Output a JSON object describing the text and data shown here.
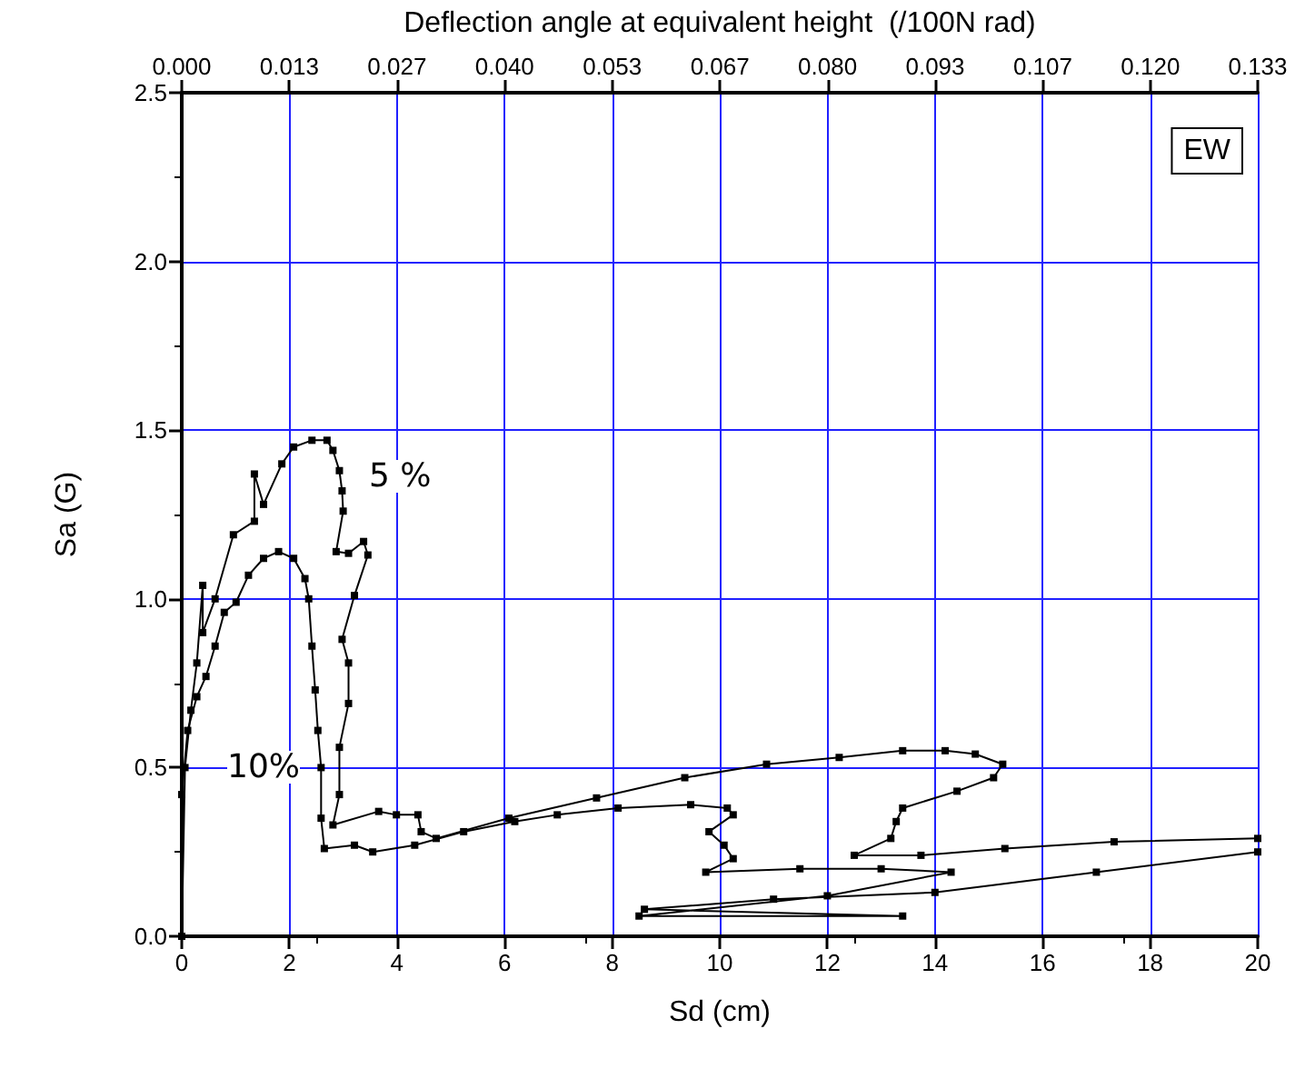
{
  "chart_data": {
    "type": "line",
    "xlabel": "Sd (cm)",
    "ylabel": "Sa (G)",
    "x2label": "Deflection angle at equivalent height  (/100N rad)",
    "xlim": [
      0,
      20
    ],
    "xticks": [
      0,
      2,
      4,
      6,
      8,
      10,
      12,
      14,
      16,
      18,
      20
    ],
    "ylim": [
      0,
      2.5
    ],
    "yticks": [
      {
        "value": 0,
        "label": "0.0"
      },
      0.5,
      {
        "value": 1,
        "label": "1.0"
      },
      1.5,
      {
        "value": 2,
        "label": "2.0"
      },
      2.5
    ],
    "x2lim": [
      0,
      0.1333
    ],
    "x2ticks": [
      {
        "value": 0,
        "label": "0.000"
      },
      {
        "value": 0.01333,
        "label": "0.013"
      },
      {
        "value": 0.02667,
        "label": "0.027"
      },
      {
        "value": 0.04,
        "label": "0.040"
      },
      {
        "value": 0.05333,
        "label": "0.053"
      },
      {
        "value": 0.06667,
        "label": "0.067"
      },
      {
        "value": 0.08,
        "label": "0.080"
      },
      {
        "value": 0.09333,
        "label": "0.093"
      },
      {
        "value": 0.10667,
        "label": "0.107"
      },
      {
        "value": 0.12,
        "label": "0.120"
      },
      {
        "value": 0.1333,
        "label": "0.133"
      }
    ],
    "grid": true,
    "marker": "square",
    "line_style": "solid",
    "legend": false,
    "series": [
      {
        "name": "5 %",
        "color": "#000000",
        "x": [
          0,
          0.06,
          0.17,
          0.28,
          0.39,
          0.39,
          0.62,
          0.96,
          1.35,
          1.35,
          1.52,
          1.86,
          2.08,
          2.42,
          2.7,
          2.81,
          2.93,
          2.98,
          3.0,
          2.87,
          3.1,
          3.38,
          3.46,
          3.21,
          2.98,
          3.1,
          3.1,
          2.93,
          2.93,
          2.81,
          3.66,
          3.99,
          4.39,
          4.45,
          4.73,
          6.08,
          7.71,
          9.35,
          10.87,
          12.22,
          13.4,
          14.19,
          14.75,
          15.26,
          15.09,
          14.41,
          13.4,
          13.28,
          13.18,
          12.5,
          13.74,
          15.3,
          17.33,
          20
        ],
        "values": [
          0,
          0.5,
          0.67,
          0.81,
          1.04,
          0.9,
          1.0,
          1.19,
          1.23,
          1.37,
          1.28,
          1.4,
          1.45,
          1.47,
          1.47,
          1.44,
          1.38,
          1.32,
          1.26,
          1.14,
          1.135,
          1.17,
          1.13,
          1.01,
          0.88,
          0.81,
          0.69,
          0.56,
          0.42,
          0.33,
          0.37,
          0.36,
          0.36,
          0.31,
          0.29,
          0.35,
          0.41,
          0.47,
          0.51,
          0.53,
          0.55,
          0.55,
          0.54,
          0.51,
          0.47,
          0.43,
          0.38,
          0.34,
          0.29,
          0.24,
          0.24,
          0.26,
          0.28,
          0.29
        ]
      },
      {
        "name": "10%",
        "color": "#000000",
        "x": [
          0,
          0,
          0.11,
          0.28,
          0.45,
          0.62,
          0.79,
          1.01,
          1.24,
          1.52,
          1.8,
          2.08,
          2.29,
          2.36,
          2.42,
          2.48,
          2.53,
          2.59,
          2.59,
          2.65,
          3.21,
          3.55,
          4.33,
          5.24,
          6.19,
          6.98,
          8.11,
          9.46,
          10.14,
          10.25,
          9.8,
          10.08,
          10.25,
          9.74,
          11.49,
          13.0,
          14.3,
          12.0,
          8.5,
          13.4,
          8.6,
          11.0,
          14.0,
          17.0,
          20
        ],
        "values": [
          0,
          0.42,
          0.61,
          0.71,
          0.77,
          0.86,
          0.96,
          0.99,
          1.07,
          1.12,
          1.14,
          1.12,
          1.06,
          1.0,
          0.86,
          0.73,
          0.61,
          0.5,
          0.35,
          0.26,
          0.27,
          0.25,
          0.27,
          0.31,
          0.34,
          0.36,
          0.38,
          0.39,
          0.38,
          0.36,
          0.31,
          0.27,
          0.23,
          0.19,
          0.2,
          0.2,
          0.19,
          0.12,
          0.06,
          0.06,
          0.08,
          0.11,
          0.13,
          0.19,
          0.25
        ]
      }
    ],
    "annotations": [
      "EW"
    ]
  }
}
